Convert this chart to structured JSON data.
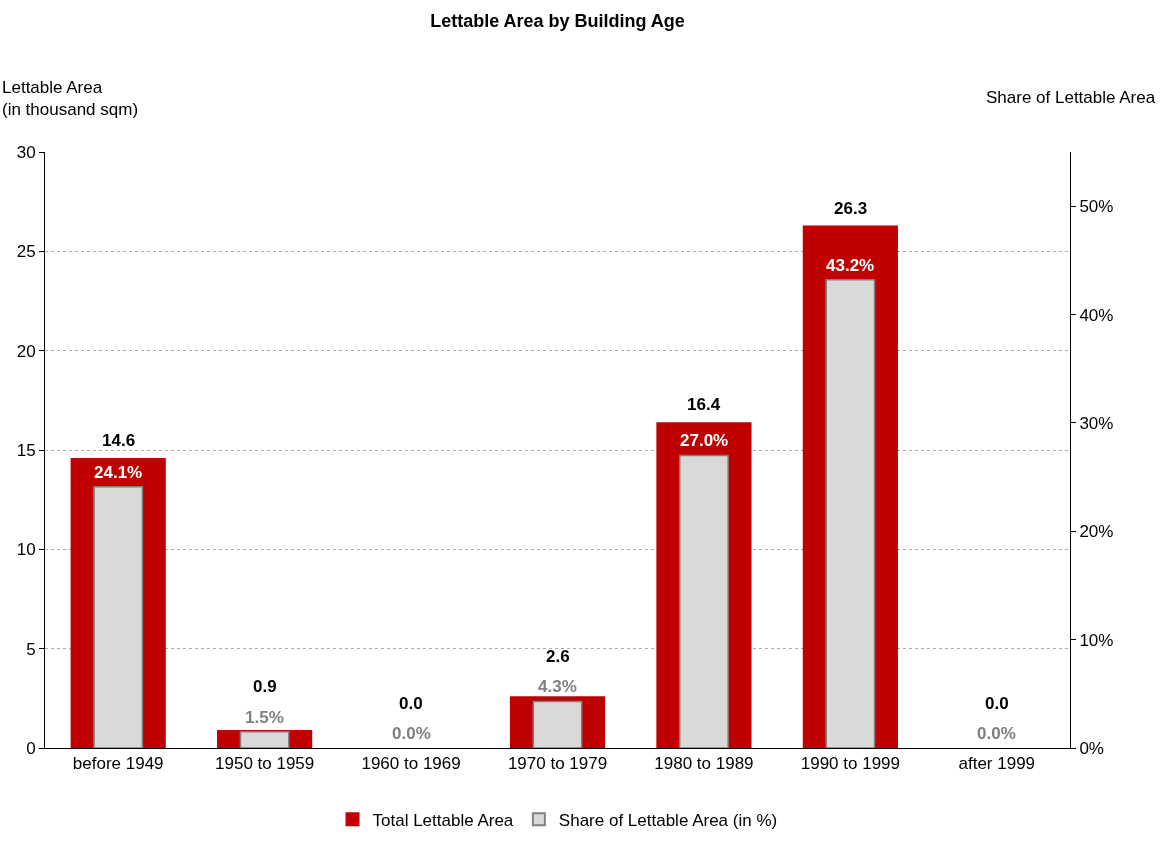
{
  "chart_data": {
    "type": "bar",
    "title": "Lettable Area by Building Age",
    "ylabel": "Lettable Area\n(in thousand sqm)",
    "y2label": "Share of Lettable Area",
    "categories": [
      "before 1949",
      "1950 to 1959",
      "1960 to 1969",
      "1970 to 1979",
      "1980 to 1989",
      "1990 to 1999",
      "after 1999"
    ],
    "series": [
      {
        "name": "Total Lettable Area",
        "color": "#c00000",
        "values": [
          14.6,
          0.9,
          0.0,
          2.6,
          16.4,
          26.3,
          0.0
        ],
        "value_labels": [
          "14.6",
          "0.9",
          "0.0",
          "2.6",
          "16.4",
          "26.3",
          "0.0"
        ]
      },
      {
        "name": "Share of Lettable Area (in %)",
        "color": "#d9d9d9",
        "axis": "y2",
        "values": [
          24.1,
          1.5,
          0.0,
          4.3,
          27.0,
          43.2,
          0.0
        ],
        "value_labels": [
          "24.1%",
          "1.5%",
          "0.0%",
          "4.3%",
          "27.0%",
          "43.2%",
          "0.0%"
        ]
      }
    ],
    "ylim": [
      0,
      30
    ],
    "yticks": [
      0,
      5,
      10,
      15,
      20,
      25,
      30
    ],
    "y2lim": [
      0,
      55
    ],
    "y2ticks": [
      {
        "value": 0,
        "label": "0%"
      },
      {
        "value": 10,
        "label": "10%"
      },
      {
        "value": 20,
        "label": "20%"
      },
      {
        "value": 30,
        "label": "30%"
      },
      {
        "value": 40,
        "label": "40%"
      },
      {
        "value": 50,
        "label": "50%"
      }
    ],
    "grid": "y",
    "legend": "bottom"
  }
}
